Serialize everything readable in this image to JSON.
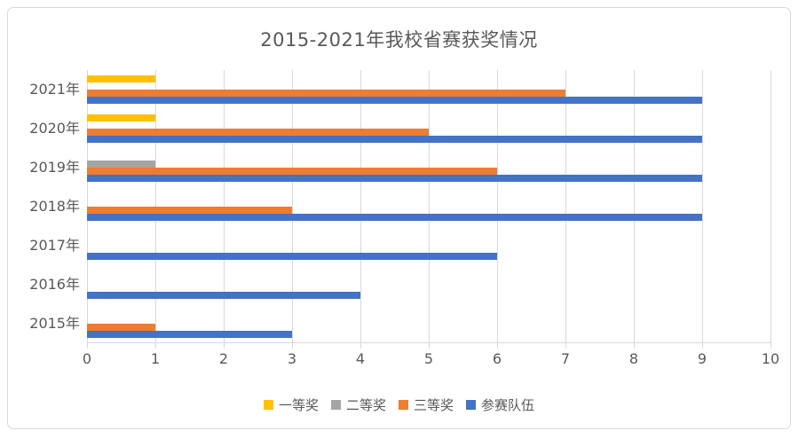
{
  "chart_data": {
    "type": "bar",
    "orientation": "horizontal",
    "title": "2015-2021年我校省赛获奖情况",
    "categories": [
      "2021年",
      "2020年",
      "2019年",
      "2018年",
      "2017年",
      "2016年",
      "2015年"
    ],
    "series": [
      {
        "name": "一等奖",
        "color": "#FFC000",
        "values": [
          1,
          1,
          0,
          0,
          0,
          0,
          0
        ]
      },
      {
        "name": "二等奖",
        "color": "#A5A5A5",
        "values": [
          0,
          0,
          1,
          0,
          0,
          0,
          0
        ]
      },
      {
        "name": "三等奖",
        "color": "#ED7D31",
        "values": [
          7,
          5,
          6,
          3,
          0,
          0,
          1
        ]
      },
      {
        "name": "参赛队伍",
        "color": "#4472C4",
        "values": [
          9,
          9,
          9,
          9,
          6,
          4,
          3
        ]
      }
    ],
    "xlim": [
      0,
      10
    ],
    "xticks": [
      0,
      1,
      2,
      3,
      4,
      5,
      6,
      7,
      8,
      9,
      10
    ],
    "grid": "vertical",
    "legend_position": "bottom",
    "colors": {
      "grid": "#D9D9D9",
      "axis_text": "#595959",
      "title_text": "#595959",
      "frame_border": "#D9D9D9",
      "background": "#FFFFFF"
    }
  }
}
